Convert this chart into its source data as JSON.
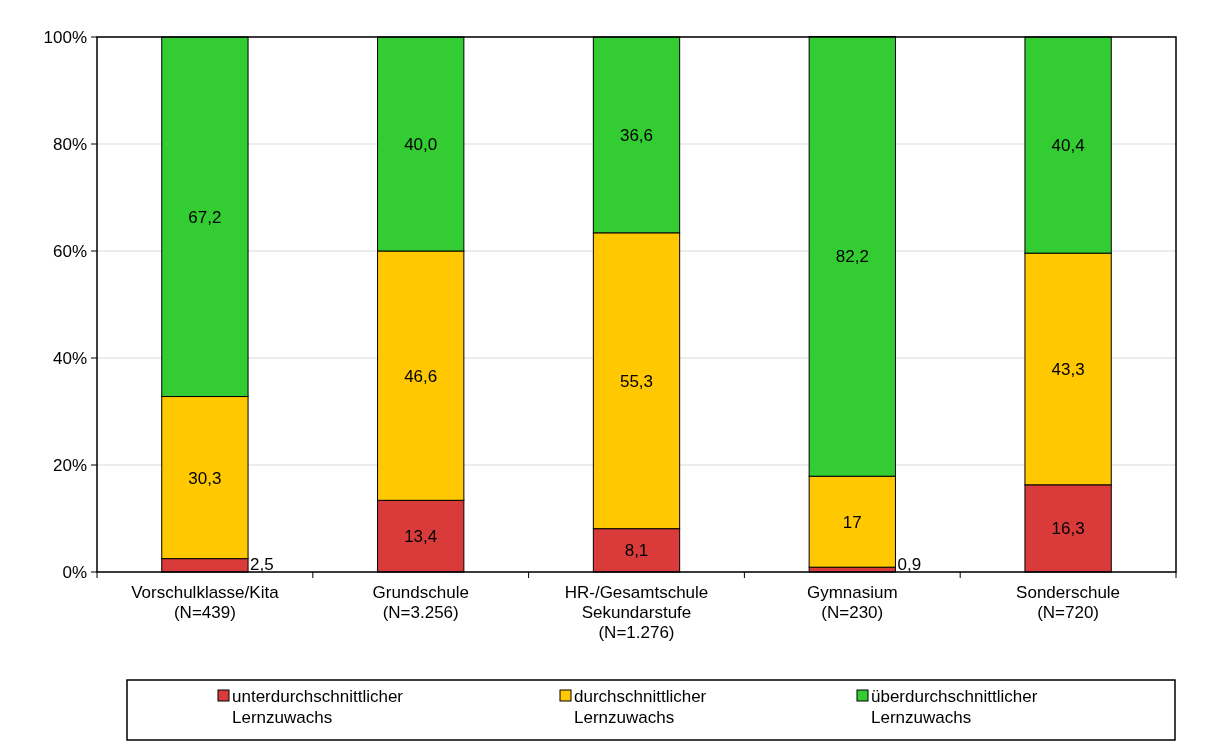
{
  "chart_data": {
    "type": "bar",
    "stacked": true,
    "categories": [
      "Vorschulklasse/Kita\n(N=439)",
      "Grundschule\n(N=3.256)",
      "HR-/Gesamtschule\nSekundarstufe\n(N=1.276)",
      "Gymnasium\n(N=230)",
      "Sonderschule\n(N=720)"
    ],
    "series": [
      {
        "name": "unterdurchschnittlicher\nLernzuwachs",
        "color": "#d93b3b",
        "values": [
          2.5,
          13.4,
          8.1,
          0.9,
          16.3
        ],
        "value_labels": [
          "2,5",
          "13,4",
          "8,1",
          "0,9",
          "16,3"
        ]
      },
      {
        "name": "durchschnittlicher\nLernzuwachs",
        "color": "#ffc800",
        "values": [
          30.3,
          46.6,
          55.3,
          17,
          43.3
        ],
        "value_labels": [
          "30,3",
          "46,6",
          "55,3",
          "17",
          "43,3"
        ]
      },
      {
        "name": "überdurchschnittlicher\nLernzuwachs",
        "color": "#33cc33",
        "values": [
          67.2,
          40.0,
          36.6,
          82.2,
          40.4
        ],
        "value_labels": [
          "67,2",
          "40,0",
          "36,6",
          "82,2",
          "40,4"
        ]
      }
    ],
    "ylim": [
      0,
      100
    ],
    "yticks": [
      {
        "value": 0,
        "label": "0%"
      },
      {
        "value": 20,
        "label": "20%"
      },
      {
        "value": 40,
        "label": "40%"
      },
      {
        "value": 60,
        "label": "60%"
      },
      {
        "value": 80,
        "label": "80%"
      },
      {
        "value": 100,
        "label": "100%"
      }
    ],
    "grid": "y",
    "legend": "bottom"
  }
}
